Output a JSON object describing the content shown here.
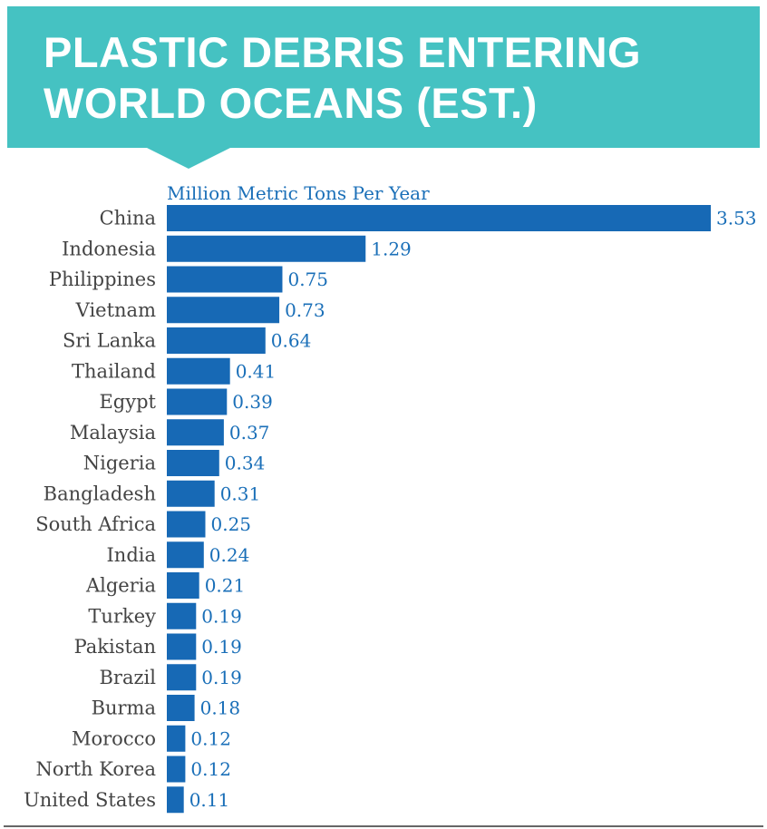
{
  "title_lines": [
    "PLASTIC DEBRIS ENTERING",
    "WORLD OCEANS (EST.)"
  ],
  "chart_data": {
    "type": "bar",
    "orientation": "horizontal",
    "title": "PLASTIC DEBRIS ENTERING WORLD OCEANS (EST.)",
    "unit_label": "Million Metric Tons Per Year",
    "categories": [
      "China",
      "Indonesia",
      "Philippines",
      "Vietnam",
      "Sri Lanka",
      "Thailand",
      "Egypt",
      "Malaysia",
      "Nigeria",
      "Bangladesh",
      "South Africa",
      "India",
      "Algeria",
      "Turkey",
      "Pakistan",
      "Brazil",
      "Burma",
      "Morocco",
      "North Korea",
      "United States"
    ],
    "values": [
      3.53,
      1.29,
      0.75,
      0.73,
      0.64,
      0.41,
      0.39,
      0.37,
      0.34,
      0.31,
      0.25,
      0.24,
      0.21,
      0.19,
      0.19,
      0.19,
      0.18,
      0.12,
      0.12,
      0.11
    ],
    "value_labels": [
      "3.53",
      "1.29",
      "0.75",
      "0.73",
      "0.64",
      "0.41",
      "0.39",
      "0.37",
      "0.34",
      "0.31",
      "0.25",
      "0.24",
      "0.21",
      "0.19",
      "0.19",
      "0.19",
      "0.18",
      "0.12",
      "0.12",
      "0.11"
    ],
    "xlim": [
      0,
      3.53
    ],
    "grid": false,
    "legend": "none",
    "colors": {
      "bar": "#1769b5",
      "value_text": "#1a6fb8",
      "category_text": "#444444",
      "banner": "#45c2c2"
    }
  }
}
